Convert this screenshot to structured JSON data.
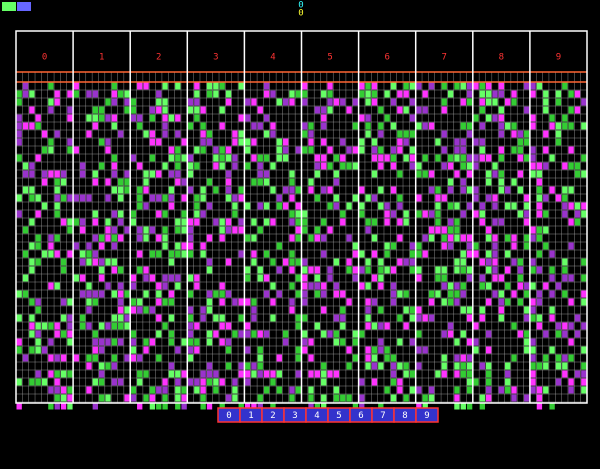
{
  "top_counter": [
    "0",
    "0"
  ],
  "columns": [
    "0",
    "1",
    "2",
    "3",
    "4",
    "5",
    "6",
    "7",
    "8",
    "9"
  ],
  "buttons": [
    "0",
    "1",
    "2",
    "3",
    "4",
    "5",
    "6",
    "7",
    "8",
    "9"
  ]
}
